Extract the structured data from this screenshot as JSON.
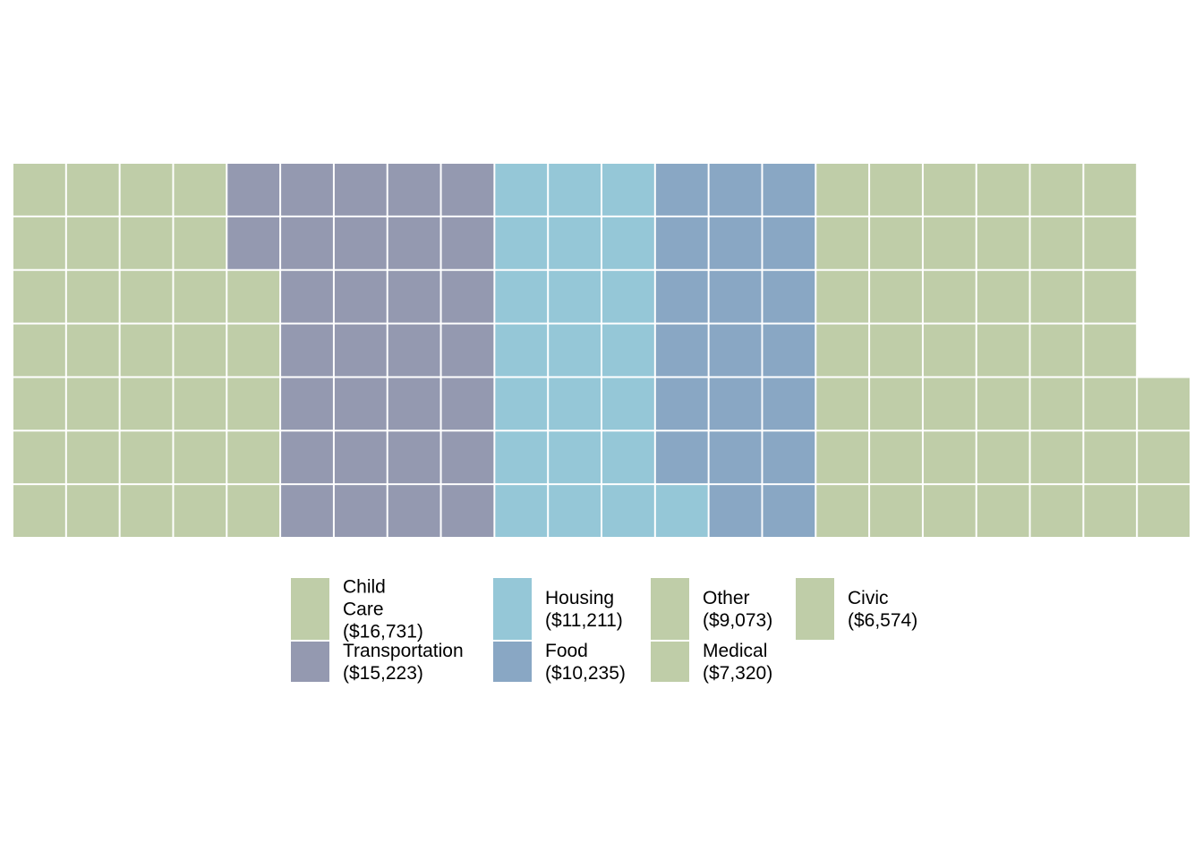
{
  "chart_data": {
    "type": "waffle",
    "title": "",
    "rows": 7,
    "cells_per_category": {
      "Child Care": 33,
      "Transportation": 30,
      "Housing": 22,
      "Food": 20,
      "Other": 18,
      "Medical": 14,
      "Civic": 13
    },
    "categories": [
      {
        "name": "Child Care",
        "label": [
          "Child",
          "Care",
          "($16,731)"
        ],
        "value": 16731,
        "color": "#bfcda8"
      },
      {
        "name": "Transportation",
        "label": [
          "Transportation",
          "($15,223)"
        ],
        "value": 15223,
        "color": "#9499b0"
      },
      {
        "name": "Housing",
        "label": [
          "Housing",
          "($11,211)"
        ],
        "value": 11211,
        "color": "#95c7d7"
      },
      {
        "name": "Food",
        "label": [
          "Food",
          "($10,235)"
        ],
        "value": 10235,
        "color": "#89a7c4"
      },
      {
        "name": "Other",
        "label": [
          "Other",
          "($9,073)"
        ],
        "value": 9073,
        "color": "#bfcda8"
      },
      {
        "name": "Medical",
        "label": [
          "Medical",
          "($7,320)"
        ],
        "value": 7320,
        "color": "#bfcda8"
      },
      {
        "name": "Civic",
        "label": [
          "Civic",
          "($6,574)"
        ],
        "value": 6574,
        "color": "#bfcda8"
      }
    ],
    "legend_position": "bottom"
  }
}
